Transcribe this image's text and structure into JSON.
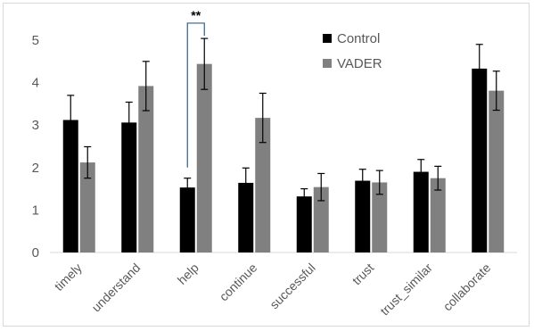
{
  "chart_data": {
    "type": "bar",
    "title": "",
    "xlabel": "",
    "ylabel": "",
    "ylim": [
      0,
      5
    ],
    "yticks": [
      0,
      1,
      2,
      3,
      4,
      5
    ],
    "grid": false,
    "legend_position": "top-right",
    "categories": [
      "timely",
      "understand",
      "help",
      "continue",
      "successful",
      "trust",
      "trust_similar",
      "collaborate"
    ],
    "series": [
      {
        "name": "Control",
        "color": "#000000",
        "values": [
          3.12,
          3.06,
          1.53,
          1.64,
          1.32,
          1.69,
          1.9,
          4.33
        ],
        "error": [
          0.58,
          0.48,
          0.22,
          0.35,
          0.18,
          0.27,
          0.29,
          0.57
        ]
      },
      {
        "name": "VADER",
        "color": "#808080",
        "values": [
          2.12,
          3.92,
          4.44,
          3.17,
          1.54,
          1.65,
          1.75,
          3.81
        ],
        "error": [
          0.37,
          0.58,
          0.6,
          0.58,
          0.32,
          0.28,
          0.28,
          0.46
        ]
      }
    ],
    "annotations": [
      {
        "text": "**",
        "category": "help",
        "bracket_low_y": 2.0,
        "bracket_top_y": 5.4,
        "bracket_color": "#2e5f8a"
      }
    ]
  }
}
